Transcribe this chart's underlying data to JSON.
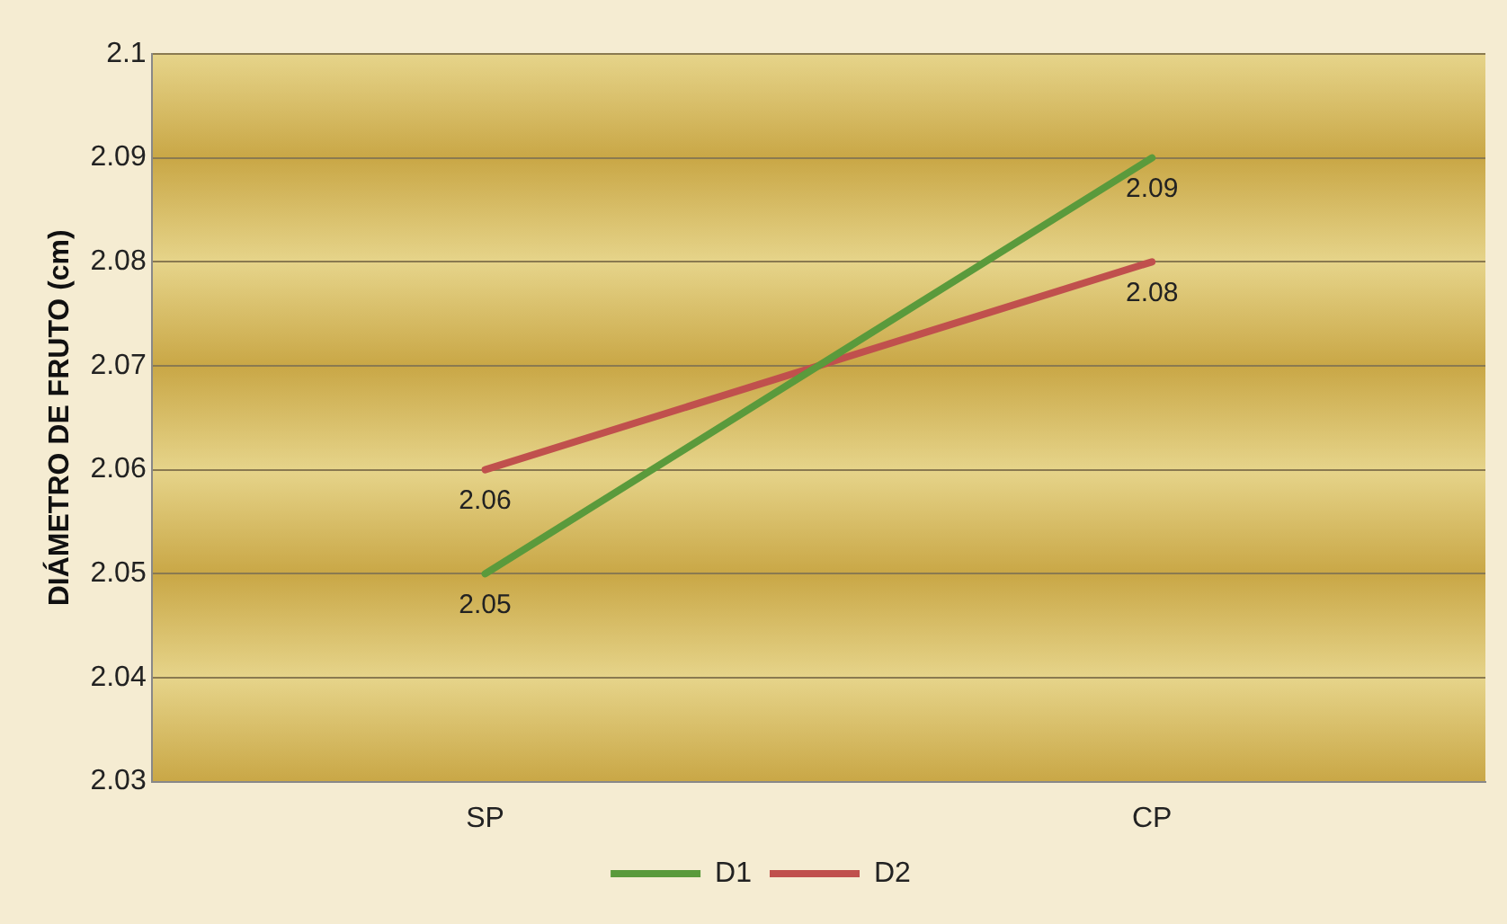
{
  "chart_data": {
    "type": "line",
    "ylabel": "DIÁMETRO DE FRUTO (cm)",
    "categories": [
      "SP",
      "CP"
    ],
    "series": [
      {
        "name": "D1",
        "color": "#5a9a3c",
        "values": [
          2.05,
          2.09
        ]
      },
      {
        "name": "D2",
        "color": "#c0504d",
        "values": [
          2.06,
          2.08
        ]
      }
    ],
    "ylim": [
      2.03,
      2.1
    ],
    "yticks": [
      2.03,
      2.04,
      2.05,
      2.06,
      2.07,
      2.08,
      2.09,
      2.1
    ],
    "grid": "y",
    "legend": "bottom",
    "data_labels": true,
    "marker": "none"
  }
}
